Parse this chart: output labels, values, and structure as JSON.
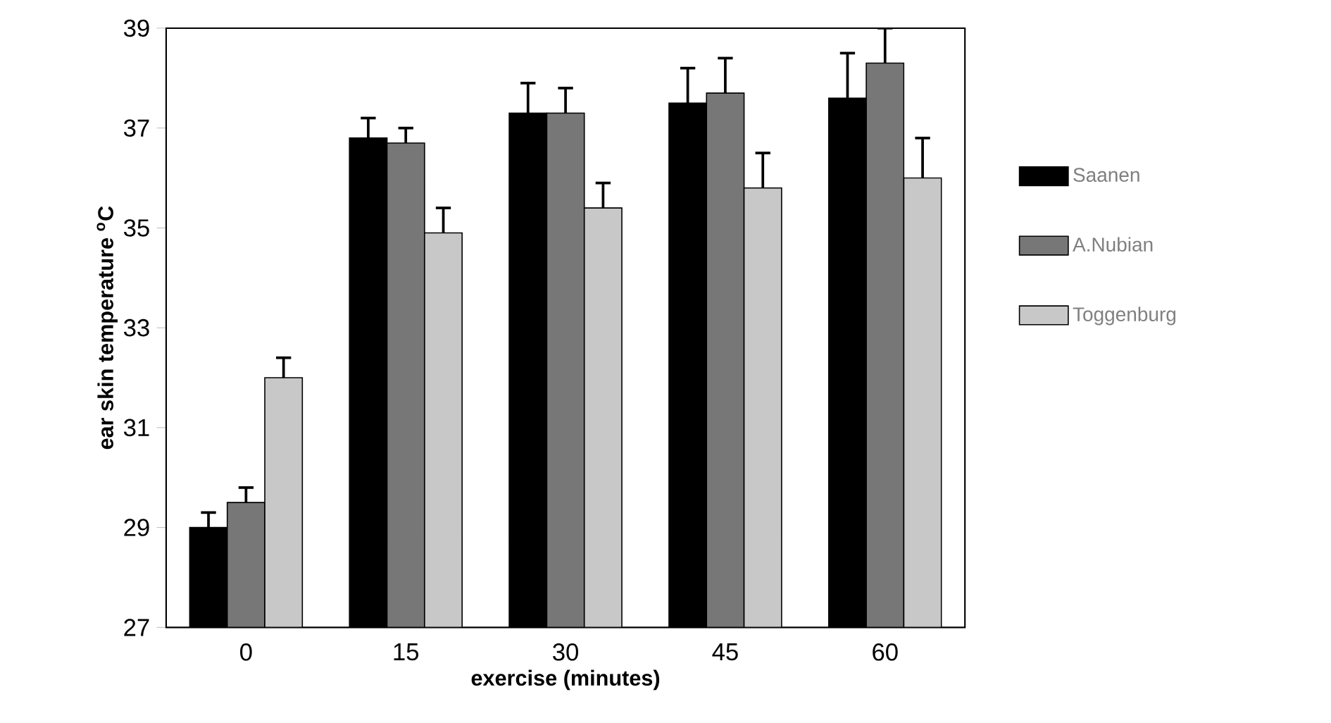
{
  "chart_data": {
    "type": "bar",
    "xlabel": "exercise (minutes)",
    "ylabel": "ear skin temperature $^{o}$C",
    "categories": [
      "0",
      "15",
      "30",
      "45",
      "60"
    ],
    "series": [
      {
        "name": "Saanen",
        "color": "#000000",
        "values": [
          29.0,
          36.8,
          37.3,
          37.5,
          37.6
        ],
        "errors": [
          0.3,
          0.4,
          0.6,
          0.7,
          0.9
        ]
      },
      {
        "name": "A.Nubian",
        "color": "#777777",
        "values": [
          29.5,
          36.7,
          37.3,
          37.7,
          38.3
        ],
        "errors": [
          0.3,
          0.3,
          0.5,
          0.7,
          0.7
        ]
      },
      {
        "name": "Toggenburg",
        "color": "#c8c8c8",
        "values": [
          32.0,
          34.9,
          35.4,
          35.8,
          36.0
        ],
        "errors": [
          0.4,
          0.5,
          0.5,
          0.7,
          0.8
        ]
      }
    ],
    "ylim": [
      27,
      39
    ],
    "yticks": [
      27,
      29,
      31,
      33,
      35,
      37,
      39
    ],
    "legend": "right",
    "grid": false
  }
}
